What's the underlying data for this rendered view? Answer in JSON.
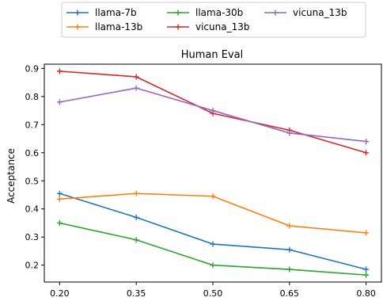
{
  "chart_data": {
    "type": "line",
    "title": "Human Eval",
    "xlabel": "",
    "ylabel": "Acceptance",
    "x": [
      0.2,
      0.35,
      0.5,
      0.65,
      0.8
    ],
    "x_tick_labels": [
      "0.20",
      "0.35",
      "0.50",
      "0.65",
      "0.80"
    ],
    "xlim": [
      0.17,
      0.83
    ],
    "ylim": [
      0.14,
      0.915
    ],
    "y_ticks": [
      0.2,
      0.3,
      0.4,
      0.5,
      0.6,
      0.7,
      0.8,
      0.9
    ],
    "y_tick_labels": [
      "0.2",
      "0.3",
      "0.4",
      "0.5",
      "0.6",
      "0.7",
      "0.8",
      "0.9"
    ],
    "grid": false,
    "legend_position": "top-center, outside plot",
    "series": [
      {
        "name": "llama-7b",
        "color": "#1f77b4",
        "values": [
          0.455,
          0.37,
          0.275,
          0.255,
          0.185
        ]
      },
      {
        "name": "llama-13b",
        "color": "#ff7f0e",
        "values": [
          0.435,
          0.455,
          0.445,
          0.34,
          0.315
        ]
      },
      {
        "name": "llama-30b",
        "color": "#2ca02c",
        "values": [
          0.35,
          0.29,
          0.2,
          0.185,
          0.165
        ]
      },
      {
        "name": "vicuna_13b",
        "color": "#d62728",
        "values": [
          0.89,
          0.87,
          0.74,
          0.68,
          0.6
        ]
      },
      {
        "name": "vicuna_13b",
        "color": "#9467bd",
        "values": [
          0.78,
          0.83,
          0.75,
          0.67,
          0.64
        ]
      }
    ]
  }
}
